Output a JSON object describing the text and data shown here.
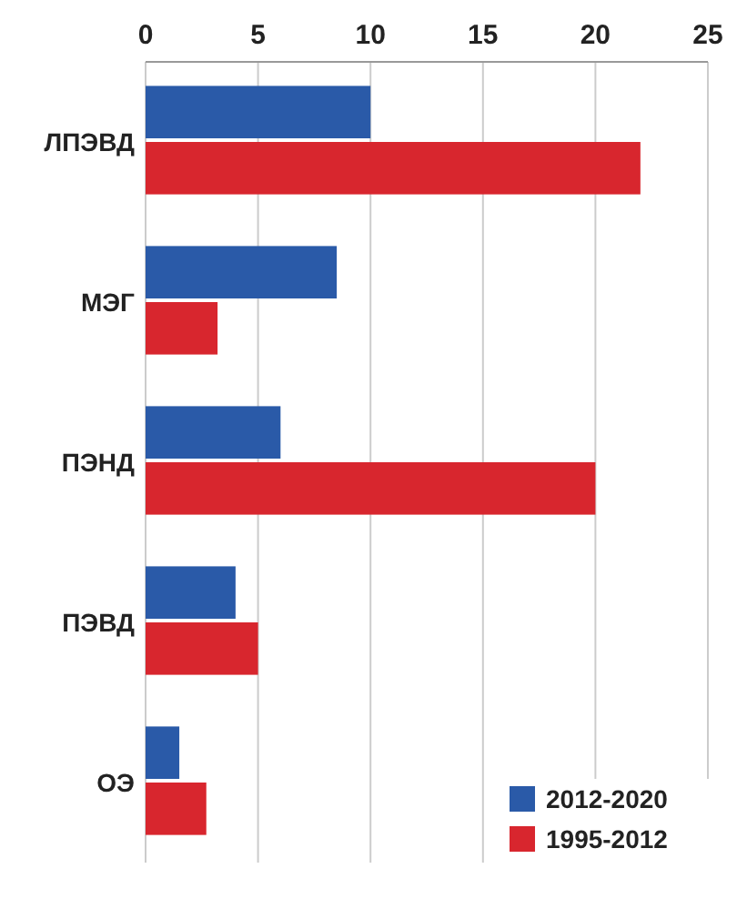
{
  "chart_data": {
    "type": "bar",
    "orientation": "horizontal",
    "categories": [
      "ЛПЭВД",
      "МЭГ",
      "ПЭНД",
      "ПЭВД",
      "ОЭ"
    ],
    "series": [
      {
        "name": "2012-2020",
        "color": "#2a5aa8",
        "values": [
          10,
          8.5,
          6,
          4,
          1.5
        ]
      },
      {
        "name": "1995-2012",
        "color": "#d8262e",
        "values": [
          22,
          3.2,
          20,
          5,
          2.7
        ]
      }
    ],
    "xlim": [
      0,
      25
    ],
    "xticks": [
      0,
      5,
      10,
      15,
      20,
      25
    ],
    "grid": "x",
    "legend": "bottom right"
  }
}
